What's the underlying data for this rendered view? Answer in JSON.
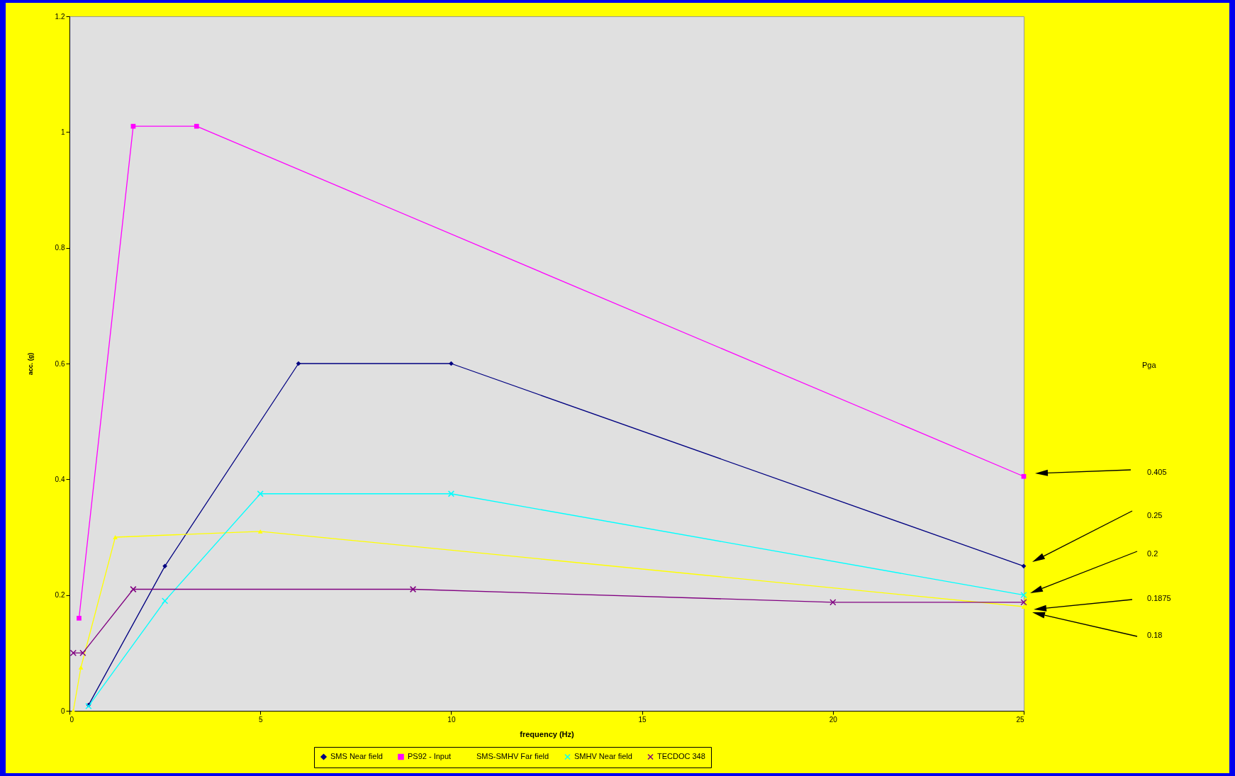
{
  "chart_data": {
    "type": "line",
    "xlabel": "frequency (Hz)",
    "ylabel": "acc. (g)",
    "xlim": [
      0,
      25
    ],
    "xticks": [
      0,
      5,
      10,
      15,
      20,
      25
    ],
    "ylim": [
      0,
      1.2
    ],
    "yticks": [
      0,
      0.2,
      0.4,
      0.6,
      0.8,
      1,
      1.2
    ],
    "grid": false,
    "legend": "bottom",
    "series": [
      {
        "name": "SMS Near field",
        "color": "#000080",
        "marker": "diamond",
        "x": [
          0.5,
          2.5,
          6,
          10,
          25
        ],
        "values": [
          0.01,
          0.25,
          0.6,
          0.6,
          0.25
        ]
      },
      {
        "name": "PS92 - Input",
        "color": "#ff00ff",
        "marker": "square",
        "x": [
          0.25,
          1.67,
          3.33,
          25
        ],
        "values": [
          0.16,
          1.01,
          1.01,
          0.405
        ]
      },
      {
        "name": "SMS-SMHV Far field",
        "color": "#ffff00",
        "marker": "triangle",
        "x": [
          0.1,
          0.3,
          1.2,
          5,
          25
        ],
        "values": [
          0,
          0.075,
          0.3,
          0.31,
          0.18
        ]
      },
      {
        "name": "SMHV Near field",
        "color": "#00ffff",
        "marker": "cross",
        "x": [
          0.5,
          2.5,
          5,
          10,
          25
        ],
        "values": [
          0.008,
          0.19,
          0.375,
          0.375,
          0.2
        ]
      },
      {
        "name": "TECDOC 348",
        "color": "#800080",
        "marker": "cross",
        "x": [
          0.1,
          0.35,
          1.67,
          9,
          20,
          25
        ],
        "values": [
          0.1,
          0.1,
          0.21,
          0.21,
          0.1875,
          0.1875
        ]
      }
    ],
    "annotations": [
      "Pga",
      "0.405",
      "0.25",
      "0.2",
      "0.1875",
      "0.18"
    ]
  }
}
